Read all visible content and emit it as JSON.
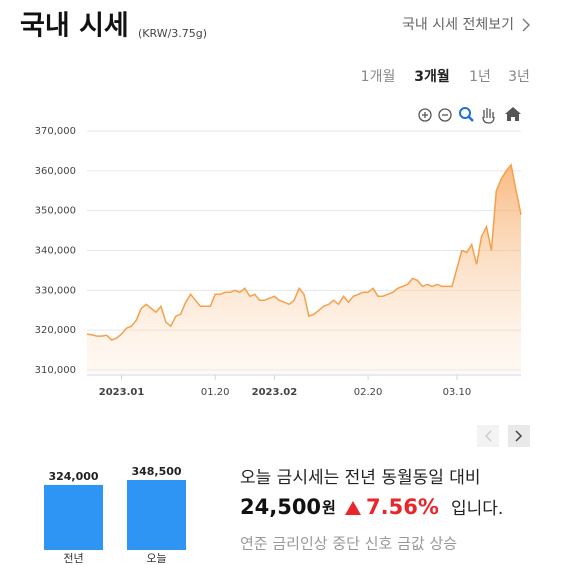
{
  "header": {
    "title": "국내 시세",
    "unit": "(KRW/3.75g)",
    "link": "국내 시세 전체보기"
  },
  "period_tabs": [
    "1개월",
    "3개월",
    "1년",
    "3년"
  ],
  "active_tab": 1,
  "chart_data": [
    {
      "type": "area",
      "categories": [
        null,
        null,
        null,
        null,
        null,
        null,
        null,
        "2023.01",
        null,
        null,
        null,
        null,
        null,
        null,
        null,
        null,
        null,
        null,
        null,
        null,
        null,
        null,
        null,
        null,
        null,
        null,
        "01.20",
        null,
        null,
        null,
        null,
        null,
        null,
        null,
        null,
        null,
        null,
        null,
        "2023.02",
        null,
        null,
        null,
        null,
        null,
        null,
        null,
        null,
        null,
        null,
        null,
        null,
        null,
        null,
        null,
        null,
        null,
        null,
        "02.20",
        null,
        null,
        null,
        null,
        null,
        null,
        null,
        null,
        null,
        null,
        null,
        null,
        null,
        null,
        null,
        null,
        null,
        "03.10",
        null,
        null,
        null,
        null,
        null,
        null,
        null,
        null,
        null,
        null,
        null,
        null,
        null
      ],
      "values": [
        319000,
        318800,
        318500,
        318500,
        318700,
        317500,
        318000,
        319000,
        320500,
        321000,
        322500,
        325500,
        326500,
        325500,
        324500,
        326000,
        322000,
        321000,
        323500,
        324000,
        327000,
        329000,
        327500,
        326000,
        326000,
        326000,
        329000,
        329000,
        329500,
        329500,
        330000,
        329500,
        330500,
        328500,
        329000,
        327500,
        327500,
        328000,
        328500,
        327500,
        327000,
        326500,
        327500,
        330500,
        329000,
        323500,
        324000,
        325000,
        326000,
        326500,
        327500,
        326500,
        328500,
        327000,
        328500,
        329000,
        329500,
        329500,
        330500,
        328500,
        328500,
        329000,
        329500,
        330500,
        331000,
        331500,
        333000,
        332500,
        331000,
        331500,
        331000,
        331500,
        331000,
        331000,
        331000,
        335500,
        340000,
        339500,
        341500,
        336500,
        343500,
        346000,
        340000,
        355000,
        358000,
        360000,
        361500,
        355000,
        349000
      ],
      "color": "#f5a04a",
      "ylim": [
        310000,
        370000
      ],
      "yticks": [
        {
          "value": 310000,
          "label": "310,000"
        },
        {
          "value": 320000,
          "label": "320,000"
        },
        {
          "value": 330000,
          "label": "330,000"
        },
        {
          "value": 340000,
          "label": "340,000"
        },
        {
          "value": 350000,
          "label": "350,000"
        },
        {
          "value": 360000,
          "label": "360,000"
        },
        {
          "value": 370000,
          "label": "370,000"
        }
      ],
      "grid": true
    },
    {
      "type": "bar",
      "categories": [
        "전년",
        "오늘"
      ],
      "values": [
        324000,
        348500
      ],
      "value_labels": [
        "324,000",
        "348,500"
      ],
      "color": "#2f95f5"
    }
  ],
  "summary": {
    "line1": "오늘 금시세는 전년 동월동일 대비",
    "amount": "24,500",
    "amount_unit": "원",
    "change": "7.56%",
    "suffix": "입니다.",
    "note": "연준 금리인상 중단 신호 금값 상승"
  }
}
